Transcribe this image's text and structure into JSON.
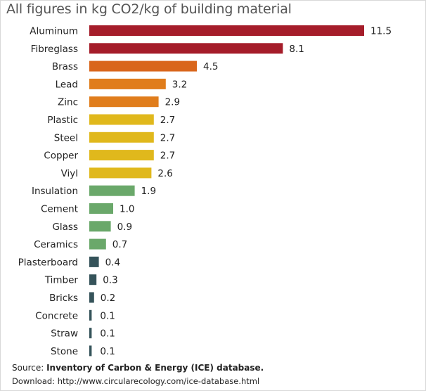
{
  "chart_data": {
    "type": "bar",
    "orientation": "horizontal",
    "title": "All figures in kg CO2/kg of building material",
    "categories": [
      "Aluminum",
      "Fibreglass",
      "Brass",
      "Lead",
      "Zinc",
      "Plastic",
      "Steel",
      "Copper",
      "Viyl",
      "Insulation",
      "Cement",
      "Glass",
      "Ceramics",
      "Plasterboard",
      "Timber",
      "Bricks",
      "Concrete",
      "Straw",
      "Stone"
    ],
    "values": [
      11.5,
      8.1,
      4.5,
      3.2,
      2.9,
      2.7,
      2.7,
      2.7,
      2.6,
      1.9,
      1.0,
      0.9,
      0.7,
      0.4,
      0.3,
      0.2,
      0.1,
      0.1,
      0.1
    ],
    "value_labels": [
      "11.5",
      "8.1",
      "4.5",
      "3.2",
      "2.9",
      "2.7",
      "2.7",
      "2.7",
      "2.6",
      "1.9",
      "1.0",
      "0.9",
      "0.7",
      "0.4",
      "0.3",
      "0.2",
      "0.1",
      "0.1",
      "0.1"
    ],
    "colors": [
      "#a51d2a",
      "#a51d2a",
      "#d9661c",
      "#e07d1c",
      "#e07d1c",
      "#e0b81c",
      "#e0b81c",
      "#e0b81c",
      "#e0b81c",
      "#6aa86a",
      "#6aa86a",
      "#6aa86a",
      "#6aa86a",
      "#35535a",
      "#35535a",
      "#35535a",
      "#35535a",
      "#35535a",
      "#35535a"
    ],
    "xlim": [
      0,
      11.5
    ],
    "grid": false,
    "legend": "none"
  },
  "footer": {
    "source_prefix": "Source:  ",
    "source_text": "Inventory of Carbon & Energy (ICE) database.",
    "download": "Download: http://www.circularecology.com/ice-database.html"
  }
}
